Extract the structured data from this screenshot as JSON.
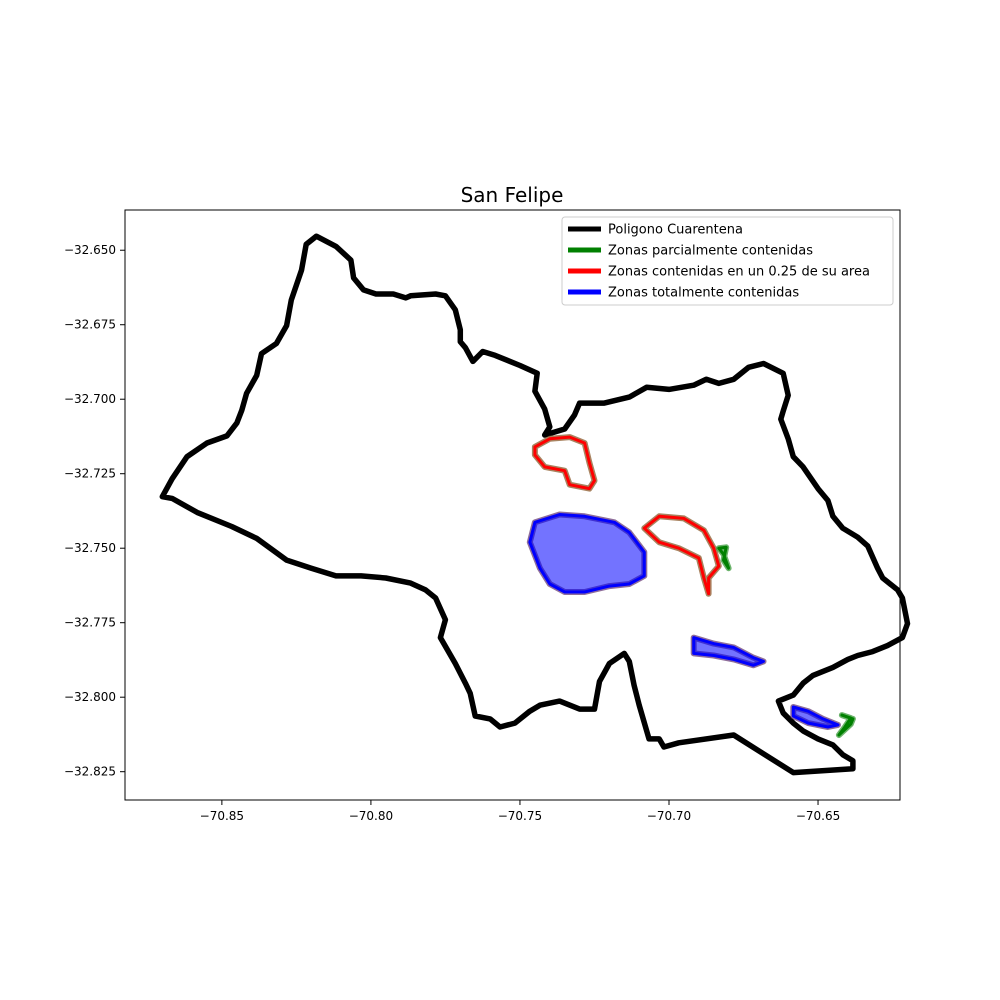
{
  "chart_data": {
    "type": "map",
    "title": "San Felipe",
    "xlabel": "",
    "ylabel": "",
    "xlim": [
      -70.8825,
      -70.6225
    ],
    "ylim": [
      -32.8345,
      -32.6365
    ],
    "xticks": [
      -70.85,
      -70.8,
      -70.75,
      -70.7,
      -70.65
    ],
    "xtick_labels": [
      "−70.85",
      "−70.80",
      "−70.75",
      "−70.70",
      "−70.65"
    ],
    "yticks": [
      -32.65,
      -32.675,
      -32.7,
      -32.725,
      -32.75,
      -32.775,
      -32.8,
      -32.825
    ],
    "ytick_labels": [
      "−32.650",
      "−32.675",
      "−32.700",
      "−32.725",
      "−32.750",
      "−32.775",
      "−32.800",
      "−32.825"
    ],
    "grid": false,
    "legend_position": "top-right",
    "colors": {
      "poligono": "#000000",
      "parcial": "#008000",
      "cuarto": "#ff0000",
      "total": "#0000ff",
      "cuarto_outline": "#8b5a2b",
      "total_outline": "#6a3d7a"
    },
    "series": [
      {
        "name": "Poligono Cuarentena",
        "color": "#000000",
        "kind": "outline",
        "polygon": [
          [
            -70.8183,
            -32.6453
          ],
          [
            -70.8117,
            -32.6487
          ],
          [
            -70.8067,
            -32.6533
          ],
          [
            -70.8058,
            -32.6593
          ],
          [
            -70.8025,
            -32.6633
          ],
          [
            -70.7983,
            -32.6647
          ],
          [
            -70.7925,
            -32.6647
          ],
          [
            -70.7883,
            -32.666
          ],
          [
            -70.7867,
            -32.6653
          ],
          [
            -70.7783,
            -32.6647
          ],
          [
            -70.775,
            -32.6653
          ],
          [
            -70.7717,
            -32.67
          ],
          [
            -70.77,
            -32.6767
          ],
          [
            -70.77,
            -32.6807
          ],
          [
            -70.7683,
            -32.6827
          ],
          [
            -70.7658,
            -32.6873
          ],
          [
            -70.7625,
            -32.684
          ],
          [
            -70.7583,
            -32.6853
          ],
          [
            -70.75,
            -32.6887
          ],
          [
            -70.7442,
            -32.6913
          ],
          [
            -70.745,
            -32.6973
          ],
          [
            -70.7417,
            -32.7033
          ],
          [
            -70.74,
            -32.7093
          ],
          [
            -70.7417,
            -32.712
          ],
          [
            -70.7383,
            -32.711
          ],
          [
            -70.735,
            -32.71
          ],
          [
            -70.7317,
            -32.7053
          ],
          [
            -70.73,
            -32.7013
          ],
          [
            -70.7217,
            -32.7013
          ],
          [
            -70.7133,
            -32.6993
          ],
          [
            -70.7075,
            -32.696
          ],
          [
            -70.7,
            -32.6967
          ],
          [
            -70.6917,
            -32.6953
          ],
          [
            -70.6875,
            -32.6933
          ],
          [
            -70.6833,
            -32.6947
          ],
          [
            -70.6783,
            -32.6933
          ],
          [
            -70.6733,
            -32.6893
          ],
          [
            -70.6683,
            -32.688
          ],
          [
            -70.6617,
            -32.6913
          ],
          [
            -70.66,
            -32.6987
          ],
          [
            -70.6617,
            -32.704
          ],
          [
            -70.6625,
            -32.7067
          ],
          [
            -70.66,
            -32.7133
          ],
          [
            -70.6583,
            -32.7193
          ],
          [
            -70.655,
            -32.7227
          ],
          [
            -70.65,
            -32.73
          ],
          [
            -70.6467,
            -32.734
          ],
          [
            -70.645,
            -32.7393
          ],
          [
            -70.6417,
            -32.7433
          ],
          [
            -70.6367,
            -32.7463
          ],
          [
            -70.6333,
            -32.7493
          ],
          [
            -70.63,
            -32.7567
          ],
          [
            -70.6283,
            -32.76
          ],
          [
            -70.6233,
            -32.764
          ],
          [
            -70.6217,
            -32.7667
          ],
          [
            -70.62,
            -32.7753
          ],
          [
            -70.6217,
            -32.78
          ],
          [
            -70.6267,
            -32.7827
          ],
          [
            -70.6317,
            -32.7847
          ],
          [
            -70.6367,
            -32.786
          ],
          [
            -70.64,
            -32.7873
          ],
          [
            -70.645,
            -32.79
          ],
          [
            -70.6517,
            -32.7927
          ],
          [
            -70.655,
            -32.7953
          ],
          [
            -70.6583,
            -32.7993
          ],
          [
            -70.6633,
            -32.8013
          ],
          [
            -70.6617,
            -32.8053
          ],
          [
            -70.6583,
            -32.8087
          ],
          [
            -70.655,
            -32.8113
          ],
          [
            -70.65,
            -32.814
          ],
          [
            -70.645,
            -32.816
          ],
          [
            -70.6417,
            -32.8193
          ],
          [
            -70.6383,
            -32.8213
          ],
          [
            -70.6383,
            -32.824
          ],
          [
            -70.6583,
            -32.8253
          ],
          [
            -70.6783,
            -32.8127
          ],
          [
            -70.6967,
            -32.8153
          ],
          [
            -70.7017,
            -32.8167
          ],
          [
            -70.7033,
            -32.814
          ],
          [
            -70.7067,
            -32.814
          ],
          [
            -70.71,
            -32.8027
          ],
          [
            -70.7117,
            -32.796
          ],
          [
            -70.7133,
            -32.788
          ],
          [
            -70.715,
            -32.7853
          ],
          [
            -70.72,
            -32.7887
          ],
          [
            -70.7233,
            -32.7947
          ],
          [
            -70.725,
            -32.804
          ],
          [
            -70.73,
            -32.804
          ],
          [
            -70.7367,
            -32.8013
          ],
          [
            -70.7433,
            -32.8027
          ],
          [
            -70.7467,
            -32.8047
          ],
          [
            -70.7517,
            -32.8087
          ],
          [
            -70.7567,
            -32.81
          ],
          [
            -70.76,
            -32.8073
          ],
          [
            -70.765,
            -32.8063
          ],
          [
            -70.7667,
            -32.7987
          ],
          [
            -70.7683,
            -32.7953
          ],
          [
            -70.7717,
            -32.7887
          ],
          [
            -70.7767,
            -32.78
          ],
          [
            -70.775,
            -32.774
          ],
          [
            -70.7783,
            -32.7667
          ],
          [
            -70.7817,
            -32.764
          ],
          [
            -70.7867,
            -32.7617
          ],
          [
            -70.795,
            -32.76
          ],
          [
            -70.8033,
            -32.7593
          ],
          [
            -70.8117,
            -32.7593
          ],
          [
            -70.82,
            -32.7567
          ],
          [
            -70.8283,
            -32.754
          ],
          [
            -70.8383,
            -32.7467
          ],
          [
            -70.8467,
            -32.7427
          ],
          [
            -70.8583,
            -32.738
          ],
          [
            -70.8667,
            -32.7333
          ],
          [
            -70.87,
            -32.7327
          ],
          [
            -70.8667,
            -32.7267
          ],
          [
            -70.8617,
            -32.7193
          ],
          [
            -70.855,
            -32.7147
          ],
          [
            -70.8483,
            -32.7123
          ],
          [
            -70.845,
            -32.708
          ],
          [
            -70.8433,
            -32.7037
          ],
          [
            -70.8417,
            -32.698
          ],
          [
            -70.8383,
            -32.692
          ],
          [
            -70.8367,
            -32.6847
          ],
          [
            -70.8317,
            -32.6813
          ],
          [
            -70.8283,
            -32.6753
          ],
          [
            -70.8267,
            -32.6667
          ],
          [
            -70.8233,
            -32.6567
          ],
          [
            -70.8217,
            -32.648
          ],
          [
            -70.8183,
            -32.6453
          ]
        ]
      },
      {
        "name": "Zonas parcialmente contenidas",
        "color": "#008000",
        "kind": "zones",
        "polygons": [
          [
            [
              -70.6833,
              -32.75
            ],
            [
              -70.6808,
              -32.7497
            ],
            [
              -70.6817,
              -32.754
            ],
            [
              -70.68,
              -32.7567
            ],
            [
              -70.6817,
              -32.752
            ],
            [
              -70.6833,
              -32.75
            ]
          ],
          [
            [
              -70.642,
              -32.806
            ],
            [
              -70.639,
              -32.807
            ],
            [
              -70.641,
              -32.81
            ],
            [
              -70.643,
              -32.8127
            ],
            [
              -70.639,
              -32.809
            ],
            [
              -70.6383,
              -32.8073
            ]
          ]
        ]
      },
      {
        "name": "Zonas contenidas en un 0.25 de su area",
        "color": "#ff0000",
        "kind": "zones",
        "polygons": [
          [
            [
              -70.745,
              -32.716
            ],
            [
              -70.74,
              -32.7133
            ],
            [
              -70.7333,
              -32.7127
            ],
            [
              -70.7283,
              -32.7147
            ],
            [
              -70.7267,
              -32.7213
            ],
            [
              -70.725,
              -32.7273
            ],
            [
              -70.7267,
              -32.73
            ],
            [
              -70.7333,
              -32.7287
            ],
            [
              -70.735,
              -32.724
            ],
            [
              -70.7417,
              -32.7227
            ],
            [
              -70.745,
              -32.7187
            ],
            [
              -70.745,
              -32.716
            ]
          ],
          [
            [
              -70.7033,
              -32.7393
            ],
            [
              -70.695,
              -32.74
            ],
            [
              -70.6883,
              -32.744
            ],
            [
              -70.685,
              -32.75
            ],
            [
              -70.6833,
              -32.756
            ],
            [
              -70.6867,
              -32.76
            ],
            [
              -70.6867,
              -32.7653
            ],
            [
              -70.6883,
              -32.76
            ],
            [
              -70.69,
              -32.7533
            ],
            [
              -70.6967,
              -32.75
            ],
            [
              -70.7033,
              -32.748
            ],
            [
              -70.7083,
              -32.7433
            ],
            [
              -70.7033,
              -32.7393
            ]
          ]
        ]
      },
      {
        "name": "Zonas totalmente contenidas",
        "color": "#0000ff",
        "kind": "zones",
        "polygons": [
          [
            [
              -70.745,
              -32.7413
            ],
            [
              -70.7367,
              -32.7387
            ],
            [
              -70.7283,
              -32.7393
            ],
            [
              -70.7183,
              -32.7413
            ],
            [
              -70.7133,
              -32.7447
            ],
            [
              -70.7083,
              -32.7513
            ],
            [
              -70.7083,
              -32.7593
            ],
            [
              -70.7133,
              -32.762
            ],
            [
              -70.72,
              -32.7627
            ],
            [
              -70.7283,
              -32.7647
            ],
            [
              -70.735,
              -32.7647
            ],
            [
              -70.74,
              -32.762
            ],
            [
              -70.7433,
              -32.7567
            ],
            [
              -70.7467,
              -32.748
            ],
            [
              -70.745,
              -32.7413
            ]
          ],
          [
            [
              -70.6917,
              -32.78
            ],
            [
              -70.685,
              -32.782
            ],
            [
              -70.6783,
              -32.7833
            ],
            [
              -70.6717,
              -32.7867
            ],
            [
              -70.6683,
              -32.788
            ],
            [
              -70.6717,
              -32.7893
            ],
            [
              -70.6783,
              -32.7873
            ],
            [
              -70.685,
              -32.786
            ],
            [
              -70.6917,
              -32.7853
            ],
            [
              -70.6917,
              -32.78
            ]
          ],
          [
            [
              -70.6583,
              -32.8033
            ],
            [
              -70.6533,
              -32.8047
            ],
            [
              -70.6483,
              -32.8073
            ],
            [
              -70.6433,
              -32.8093
            ],
            [
              -70.6467,
              -32.81
            ],
            [
              -70.6533,
              -32.8087
            ],
            [
              -70.6583,
              -32.8063
            ],
            [
              -70.6583,
              -32.8033
            ]
          ]
        ]
      }
    ]
  }
}
